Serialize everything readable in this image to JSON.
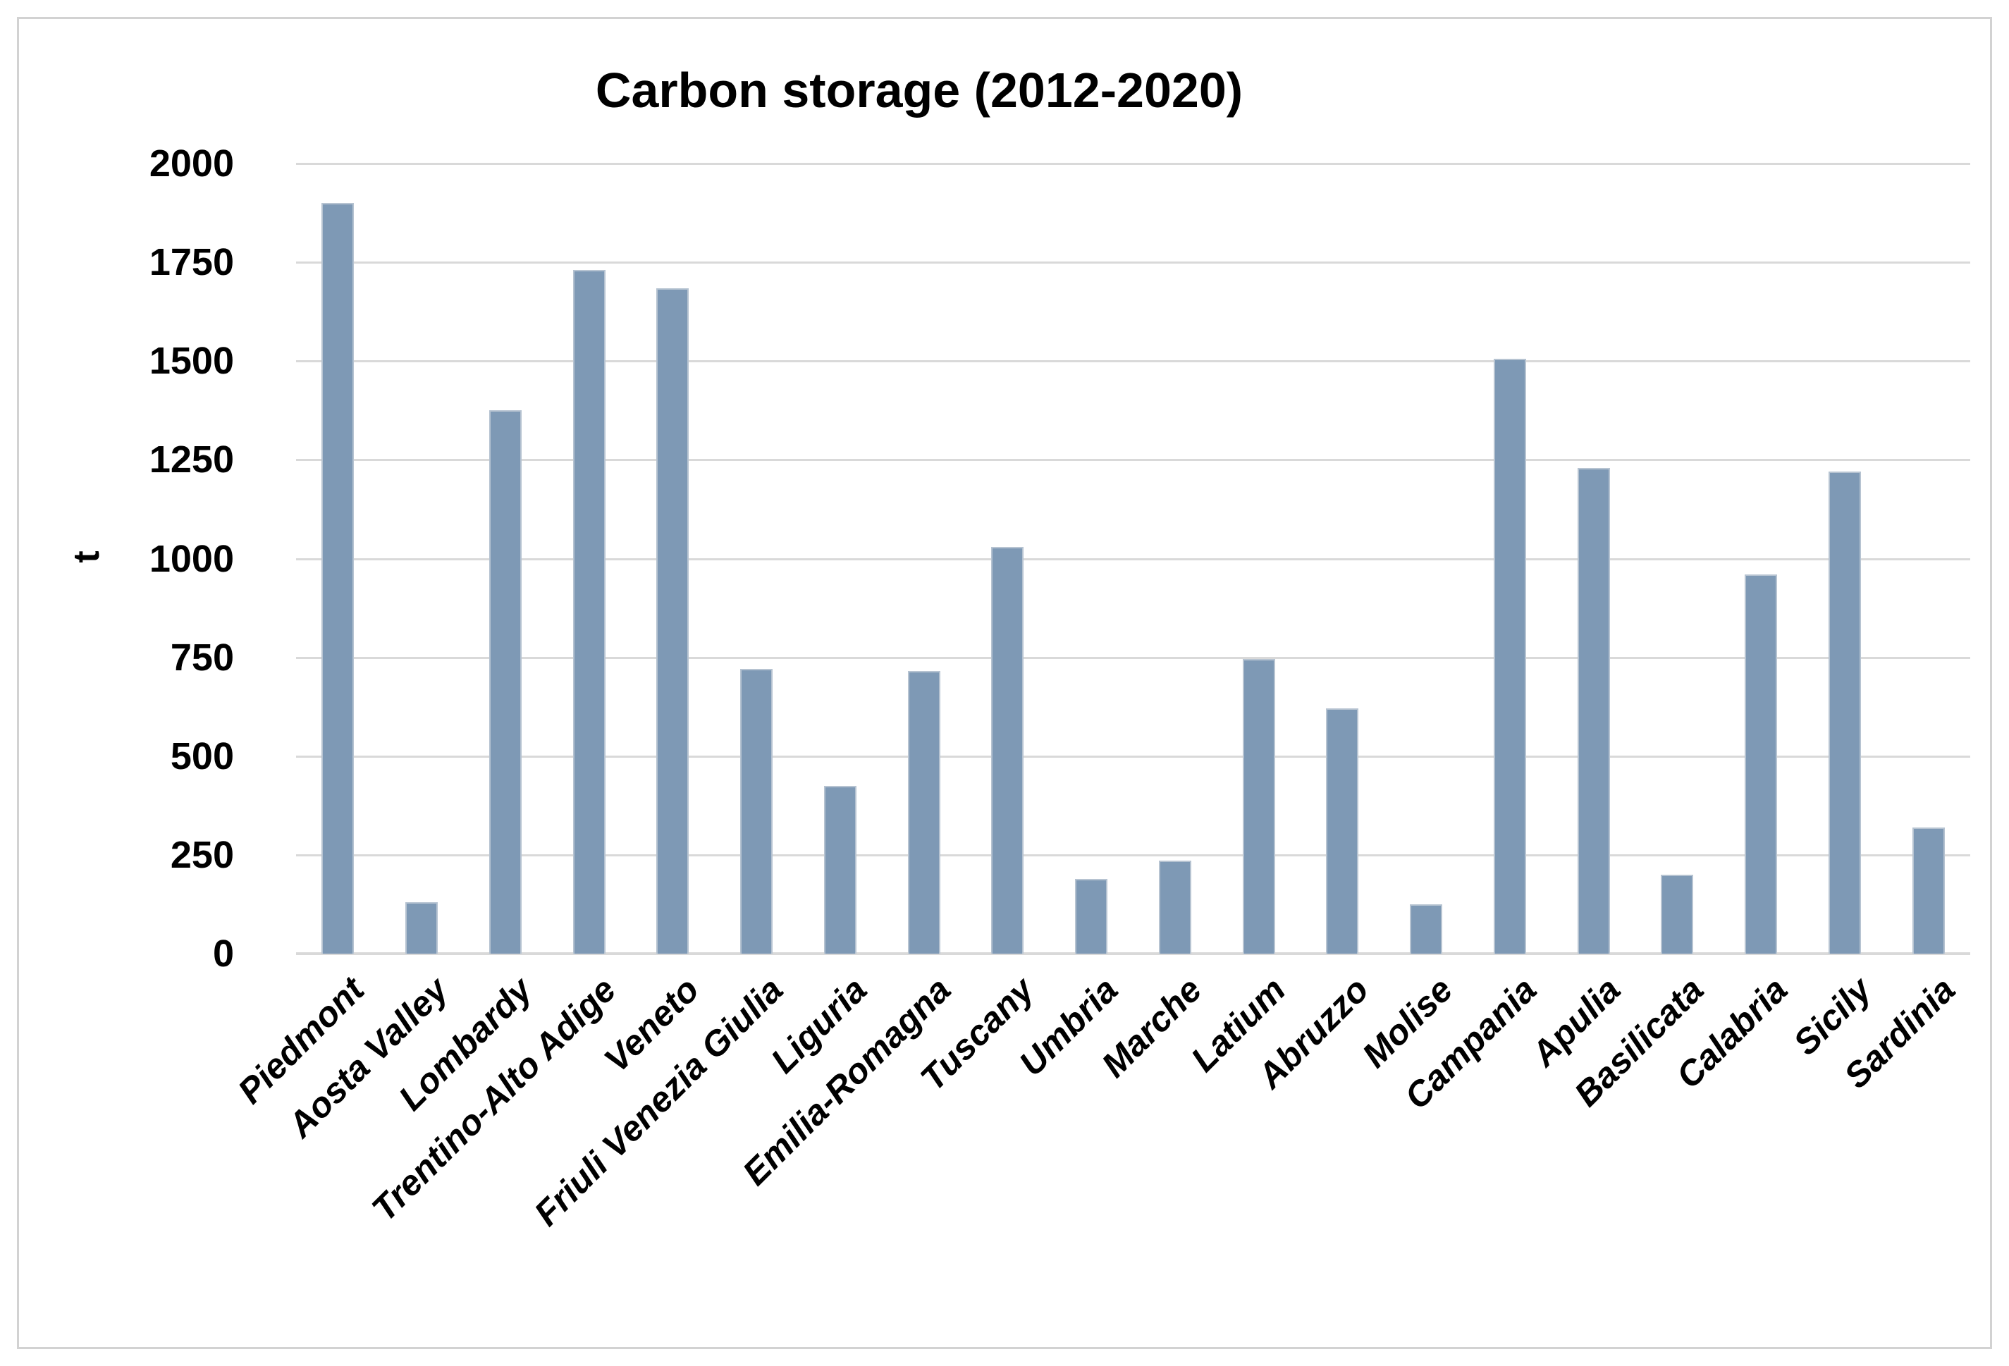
{
  "title": "Carbon storage (2012-2020)",
  "chart_data": {
    "type": "bar",
    "title": "Carbon storage (2012-2020)",
    "xlabel": "",
    "ylabel": "t",
    "ylim": [
      0,
      2000
    ],
    "yticks": [
      0,
      250,
      500,
      750,
      1000,
      1250,
      1500,
      1750,
      2000
    ],
    "grid": true,
    "legend": false,
    "bar_color": "#7e99b5",
    "bar_border_color": "#b6c3d1",
    "gridline_color": "#d9d9d9",
    "categories": [
      "Piedmont",
      "Aosta Valley",
      "Lombardy",
      "Trentino-Alto Adige",
      "Veneto",
      "Friuli Venezia Giulia",
      "Liguria",
      "Emilia-Romagna",
      "Tuscany",
      "Umbria",
      "Marche",
      "Latium",
      "Abruzzo",
      "Molise",
      "Campania",
      "Apulia",
      "Basilicata",
      "Calabria",
      "Sicily",
      "Sardinia"
    ],
    "values": [
      1900,
      130,
      1375,
      1730,
      1685,
      720,
      425,
      715,
      1030,
      190,
      235,
      745,
      620,
      125,
      1505,
      1230,
      200,
      960,
      1220,
      320
    ]
  }
}
